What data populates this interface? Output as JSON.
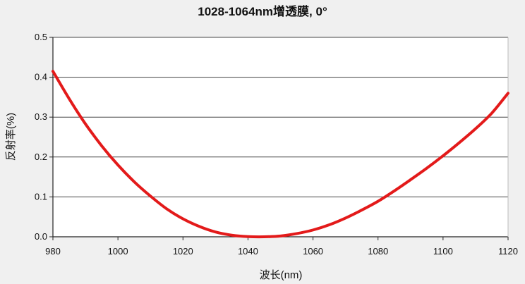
{
  "chart_data": {
    "type": "line",
    "title": "1028-1064nm增透膜, 0°",
    "xlabel": "波长(nm)",
    "ylabel": "反射率(%)",
    "xlim": [
      980,
      1120
    ],
    "ylim": [
      0.0,
      0.5
    ],
    "x_ticks": [
      "980",
      "1000",
      "1020",
      "1040",
      "1060",
      "1080",
      "1100",
      "1120"
    ],
    "y_ticks": [
      "0.0",
      "0.1",
      "0.2",
      "0.3",
      "0.4",
      "0.5"
    ],
    "grid": "horizontal",
    "series": [
      {
        "color": "#e31a1a",
        "x": [
          980,
          985,
          990,
          995,
          1000,
          1005,
          1010,
          1015,
          1020,
          1025,
          1030,
          1035,
          1040,
          1045,
          1050,
          1055,
          1060,
          1065,
          1070,
          1075,
          1080,
          1085,
          1090,
          1095,
          1100,
          1105,
          1110,
          1115,
          1120
        ],
        "values": [
          0.415,
          0.346,
          0.283,
          0.228,
          0.18,
          0.138,
          0.102,
          0.07,
          0.045,
          0.026,
          0.012,
          0.004,
          0.0005,
          0.0,
          0.002,
          0.008,
          0.017,
          0.03,
          0.047,
          0.067,
          0.089,
          0.115,
          0.143,
          0.172,
          0.203,
          0.236,
          0.271,
          0.31,
          0.36
        ]
      }
    ]
  }
}
